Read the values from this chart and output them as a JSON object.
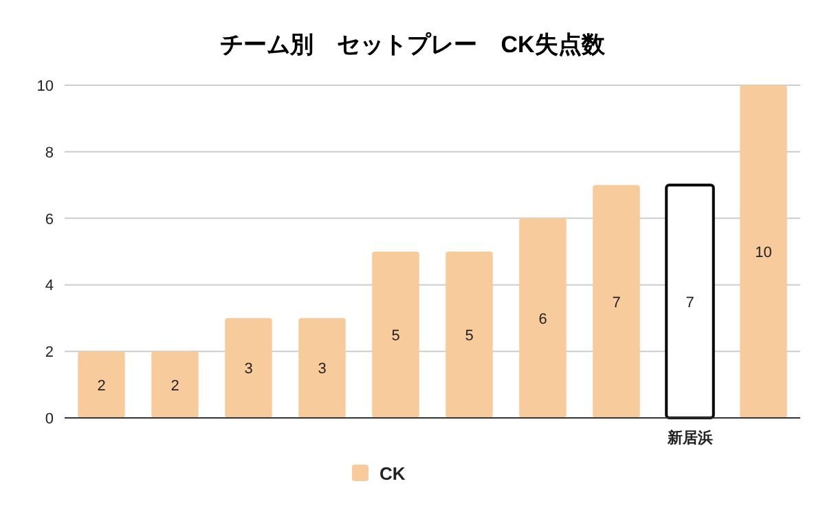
{
  "chart_data": {
    "type": "bar",
    "title": "チーム別　セットプレー　CK失点数",
    "categories": [
      null,
      null,
      null,
      null,
      null,
      null,
      null,
      null,
      "新居浜",
      null
    ],
    "series": [
      {
        "name": "CK",
        "color": "#f8cb9c",
        "values": [
          2,
          2,
          3,
          3,
          5,
          5,
          6,
          7,
          7,
          10
        ],
        "colors": [
          "#f8cb9c",
          "#f8cb9c",
          "#f8cb9c",
          "#f8cb9c",
          "#f8cb9c",
          "#f8cb9c",
          "#f8cb9c",
          "#f8cb9c",
          "#ffffff",
          "#f8cb9c"
        ]
      }
    ],
    "ylim": [
      0,
      10
    ],
    "yticks": [
      0,
      2,
      4,
      6,
      8,
      10
    ],
    "grid": "y",
    "data_labels": true,
    "legend": "bottom"
  }
}
